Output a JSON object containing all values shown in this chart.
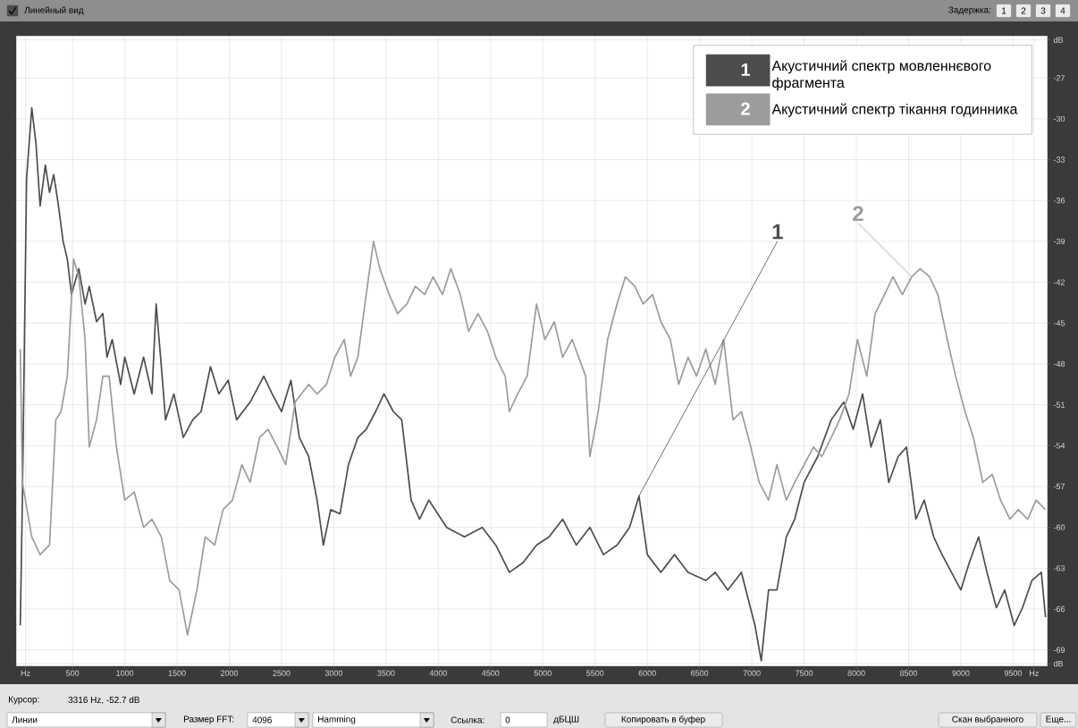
{
  "chart_data": {
    "type": "line",
    "xlim": [
      -40,
      9830
    ],
    "ylim": [
      -70.2,
      -23.9
    ],
    "xticks": [
      {
        "value": 50,
        "label": "Hz"
      },
      500,
      1000,
      1500,
      2000,
      2500,
      3000,
      3500,
      4000,
      4500,
      5000,
      5500,
      6000,
      6500,
      7000,
      7500,
      8000,
      8500,
      9000,
      9500,
      {
        "value": 9700,
        "label": "Hz"
      }
    ],
    "yticks": [
      {
        "value": -70,
        "label": "dB"
      },
      -69,
      -66,
      -63,
      -60,
      -57,
      -54,
      -51,
      -48,
      -45,
      -42,
      -39,
      -36,
      -33,
      -30,
      -27,
      {
        "value": -24.2,
        "label": "dB"
      }
    ],
    "grid": true,
    "legend": "top right",
    "marker": "none",
    "line_style": "solid",
    "series": [
      {
        "name": "Акустичний спектр мовленнєвого фрагмента",
        "color": "#4d4d4d",
        "x": [
          0,
          20,
          60,
          110,
          150,
          190,
          240,
          280,
          320,
          360,
          410,
          450,
          490,
          560,
          620,
          660,
          730,
          790,
          830,
          880,
          960,
          1000,
          1090,
          1180,
          1260,
          1300,
          1350,
          1390,
          1470,
          1560,
          1650,
          1730,
          1820,
          1900,
          1990,
          2070,
          2200,
          2330,
          2410,
          2500,
          2590,
          2670,
          2760,
          2840,
          2900,
          2970,
          3060,
          3140,
          3230,
          3310,
          3400,
          3480,
          3570,
          3650,
          3740,
          3820,
          3910,
          4080,
          4250,
          4420,
          4550,
          4680,
          4810,
          4940,
          5060,
          5190,
          5320,
          5450,
          5580,
          5710,
          5830,
          5920,
          6000,
          6130,
          6260,
          6390,
          6560,
          6650,
          6770,
          6900,
          7030,
          7090,
          7160,
          7240,
          7330,
          7410,
          7500,
          7630,
          7760,
          7880,
          7970,
          8060,
          8140,
          8230,
          8310,
          8400,
          8480,
          8570,
          8650,
          8740,
          8820,
          8910,
          9000,
          9080,
          9170,
          9250,
          9340,
          9420,
          9510,
          9590,
          9680,
          9770,
          9810
        ],
        "values": [
          -67.2,
          -58.0,
          -34.4,
          -29.2,
          -31.8,
          -36.4,
          -33.4,
          -35.4,
          -34.1,
          -36.1,
          -39.0,
          -40.3,
          -42.9,
          -41.0,
          -43.6,
          -42.3,
          -44.9,
          -44.3,
          -47.5,
          -46.2,
          -49.5,
          -47.5,
          -50.2,
          -47.5,
          -50.2,
          -43.6,
          -48.2,
          -52.1,
          -50.2,
          -53.4,
          -52.1,
          -51.5,
          -48.2,
          -50.2,
          -49.2,
          -52.1,
          -50.8,
          -48.9,
          -50.2,
          -51.5,
          -49.2,
          -53.4,
          -54.8,
          -58.0,
          -61.3,
          -58.7,
          -59.0,
          -55.4,
          -53.4,
          -52.8,
          -51.5,
          -50.2,
          -51.5,
          -52.1,
          -58.0,
          -59.4,
          -58.0,
          -60.0,
          -60.7,
          -60.0,
          -61.3,
          -63.3,
          -62.6,
          -61.3,
          -60.7,
          -59.4,
          -61.3,
          -60.0,
          -62.0,
          -61.3,
          -60.0,
          -57.7,
          -62.0,
          -63.3,
          -62.0,
          -63.3,
          -63.9,
          -63.3,
          -64.6,
          -63.3,
          -67.2,
          -69.8,
          -64.6,
          -64.6,
          -60.7,
          -59.4,
          -56.7,
          -54.8,
          -52.1,
          -50.8,
          -52.8,
          -50.2,
          -54.1,
          -52.1,
          -56.7,
          -54.8,
          -54.1,
          -59.4,
          -58.0,
          -60.7,
          -62.0,
          -63.3,
          -64.6,
          -62.6,
          -60.7,
          -63.3,
          -65.9,
          -64.6,
          -67.2,
          -65.9,
          -63.9,
          -63.3,
          -66.6
        ]
      },
      {
        "name": "Акустичний спектр тікання годинника",
        "color": "#9c9c9c",
        "x": [
          0,
          20,
          110,
          190,
          280,
          340,
          390,
          450,
          510,
          560,
          620,
          660,
          730,
          790,
          850,
          920,
          1000,
          1090,
          1180,
          1260,
          1350,
          1430,
          1520,
          1600,
          1690,
          1770,
          1860,
          1940,
          2030,
          2120,
          2200,
          2290,
          2370,
          2460,
          2540,
          2630,
          2760,
          2840,
          2930,
          3010,
          3100,
          3160,
          3230,
          3310,
          3380,
          3440,
          3530,
          3610,
          3700,
          3780,
          3870,
          3950,
          4040,
          4120,
          4210,
          4290,
          4380,
          4470,
          4550,
          4640,
          4680,
          4760,
          4850,
          4940,
          5020,
          5110,
          5190,
          5280,
          5410,
          5450,
          5530,
          5620,
          5710,
          5790,
          5880,
          5960,
          6050,
          6130,
          6220,
          6300,
          6390,
          6470,
          6560,
          6650,
          6730,
          6820,
          6900,
          6990,
          7070,
          7160,
          7240,
          7330,
          7410,
          7500,
          7590,
          7670,
          7760,
          7840,
          7930,
          8010,
          8100,
          8180,
          8270,
          8350,
          8440,
          8530,
          8610,
          8700,
          8780,
          8870,
          8950,
          9040,
          9120,
          9210,
          9300,
          9380,
          9470,
          9550,
          9640,
          9720,
          9810
        ],
        "values": [
          -46.9,
          -56.7,
          -60.7,
          -62.0,
          -61.3,
          -52.1,
          -51.5,
          -48.9,
          -40.3,
          -41.6,
          -46.2,
          -54.1,
          -52.1,
          -48.9,
          -48.9,
          -54.1,
          -58.0,
          -57.4,
          -60.0,
          -59.4,
          -60.7,
          -63.9,
          -64.6,
          -67.9,
          -64.6,
          -60.7,
          -61.3,
          -58.7,
          -58.0,
          -55.4,
          -56.7,
          -53.4,
          -52.8,
          -54.1,
          -55.4,
          -50.8,
          -49.5,
          -50.2,
          -49.5,
          -47.5,
          -46.2,
          -48.9,
          -47.5,
          -42.9,
          -39.0,
          -41.0,
          -42.9,
          -44.3,
          -43.6,
          -42.3,
          -42.9,
          -41.6,
          -42.9,
          -41.0,
          -42.9,
          -45.6,
          -44.3,
          -45.6,
          -47.5,
          -48.9,
          -51.5,
          -50.2,
          -48.9,
          -43.6,
          -46.2,
          -44.9,
          -47.5,
          -46.2,
          -48.9,
          -54.8,
          -51.5,
          -46.2,
          -43.6,
          -41.6,
          -42.3,
          -43.6,
          -42.9,
          -44.9,
          -46.2,
          -49.5,
          -47.5,
          -48.9,
          -46.9,
          -49.5,
          -46.2,
          -52.1,
          -51.5,
          -54.1,
          -56.7,
          -58.0,
          -55.4,
          -58.0,
          -56.7,
          -55.4,
          -54.1,
          -54.8,
          -53.4,
          -52.1,
          -50.2,
          -46.2,
          -48.9,
          -44.3,
          -42.9,
          -41.6,
          -42.9,
          -41.6,
          -41.0,
          -41.6,
          -42.9,
          -46.2,
          -48.9,
          -51.5,
          -53.4,
          -56.7,
          -56.1,
          -58.0,
          -59.4,
          -58.7,
          -59.4,
          -58.0,
          -58.7
        ]
      }
    ],
    "annotations": [
      "1",
      "2",
      {
        "text": "1",
        "x": 5920,
        "y": -57.7
      },
      {
        "text": "2",
        "x": 8530,
        "y": -41.6
      },
      "Линейный вид",
      "Задержка:",
      "1",
      "2",
      "3",
      "4",
      "Курсор:",
      "3316 Hz,  -52.7 dB",
      "Линии",
      "Размер FFT:",
      "4096",
      "Hamming",
      "Ссылка:",
      "0",
      "дБЦШ",
      "Копировать в буфер",
      "Скан выбранного",
      "Еще..."
    ]
  }
}
